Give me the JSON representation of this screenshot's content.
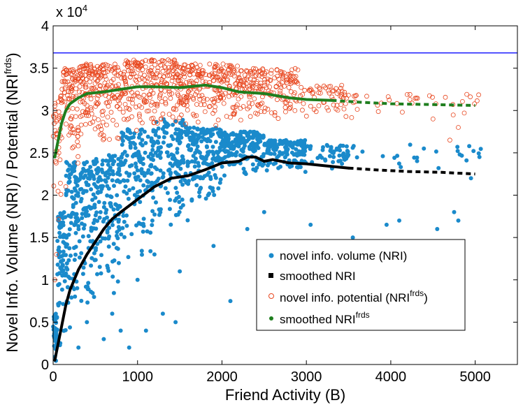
{
  "chart_data": {
    "type": "scatter",
    "title": "",
    "xlabel": "Friend Activity (B)",
    "ylabel_main": "Novel Info. Volume (NRI) / Potential (NRI",
    "ylabel_sup": "frds",
    "ylabel_close": ")",
    "y_exponent_label": "x 10",
    "y_exponent_sup": "4",
    "xlim": [
      0,
      5500
    ],
    "ylim": [
      0,
      4
    ],
    "y_multiplier": 10000,
    "grid": false,
    "legend_position": "lower-right",
    "x_ticks": [
      0,
      1000,
      2000,
      3000,
      4000,
      5000
    ],
    "x_tick_labels": [
      "0",
      "1000",
      "2000",
      "3000",
      "4000",
      "5000"
    ],
    "y_ticks": [
      0,
      0.5,
      1,
      1.5,
      2,
      2.5,
      3,
      3.5,
      4
    ],
    "y_tick_labels": [
      "0",
      "0.5",
      "1",
      "1.5",
      "2",
      "2.5",
      "3",
      "3.5",
      "4"
    ],
    "reference_line": {
      "y": 3.68,
      "color": "#1f1fff"
    },
    "series": [
      {
        "name": "novel info. volume (NRI)",
        "kind": "scatter",
        "marker": "filled-circle",
        "color": "#1a8acb",
        "cloud": [
          {
            "x": [
              0,
              50
            ],
            "y": [
              0.0,
              0.6
            ],
            "n": 40
          },
          {
            "x": [
              50,
              150
            ],
            "y": [
              0.1,
              1.8
            ],
            "n": 70
          },
          {
            "x": [
              150,
              300
            ],
            "y": [
              0.3,
              2.4
            ],
            "n": 90
          },
          {
            "x": [
              300,
              500
            ],
            "y": [
              0.6,
              2.4
            ],
            "n": 100
          },
          {
            "x": [
              500,
              800
            ],
            "y": [
              0.8,
              2.5
            ],
            "n": 140
          },
          {
            "x": [
              800,
              1200
            ],
            "y": [
              1.2,
              2.8
            ],
            "n": 160
          },
          {
            "x": [
              1200,
              1600
            ],
            "y": [
              1.6,
              2.9
            ],
            "n": 150
          },
          {
            "x": [
              1600,
              2000
            ],
            "y": [
              1.9,
              2.8
            ],
            "n": 160
          },
          {
            "x": [
              2000,
              2500
            ],
            "y": [
              2.2,
              2.75
            ],
            "n": 180
          },
          {
            "x": [
              2500,
              3000
            ],
            "y": [
              2.25,
              2.65
            ],
            "n": 120
          },
          {
            "x": [
              3000,
              3500
            ],
            "y": [
              2.3,
              2.6
            ],
            "n": 50
          },
          {
            "x": [
              3500,
              5100
            ],
            "y": [
              2.2,
              2.6
            ],
            "n": 25
          }
        ],
        "outliers": [
          {
            "x": 300,
            "y": 0.2
          },
          {
            "x": 400,
            "y": 0.5
          },
          {
            "x": 600,
            "y": 0.3
          },
          {
            "x": 700,
            "y": 0.6
          },
          {
            "x": 800,
            "y": 0.4
          },
          {
            "x": 900,
            "y": 0.2
          },
          {
            "x": 1100,
            "y": 0.4
          },
          {
            "x": 1300,
            "y": 0.6
          },
          {
            "x": 1450,
            "y": 0.5
          },
          {
            "x": 1000,
            "y": 1.0
          },
          {
            "x": 1200,
            "y": 1.3
          },
          {
            "x": 1500,
            "y": 1.1
          },
          {
            "x": 1900,
            "y": 1.4
          },
          {
            "x": 2100,
            "y": 0.75
          },
          {
            "x": 2300,
            "y": 1.6
          },
          {
            "x": 2500,
            "y": 1.8
          },
          {
            "x": 3050,
            "y": 1.65
          },
          {
            "x": 3550,
            "y": 1.5
          },
          {
            "x": 3950,
            "y": 1.65
          },
          {
            "x": 4100,
            "y": 1.7
          },
          {
            "x": 4550,
            "y": 1.6
          },
          {
            "x": 4750,
            "y": 1.8
          },
          {
            "x": 4800,
            "y": 1.7
          },
          {
            "x": 4950,
            "y": 2.2
          },
          {
            "x": 5050,
            "y": 2.45
          }
        ]
      },
      {
        "name": "smoothed NRI",
        "kind": "line",
        "marker": "square",
        "color": "#000000",
        "x": [
          20,
          50,
          100,
          150,
          200,
          300,
          400,
          500,
          600,
          700,
          800,
          1000,
          1200,
          1400,
          1600,
          1800,
          2000,
          2200,
          2300,
          2400,
          2500,
          2600,
          2700,
          2800,
          3000,
          3200,
          3500,
          3800,
          4200,
          4600,
          5000
        ],
        "y": [
          0.05,
          0.2,
          0.45,
          0.7,
          0.88,
          1.12,
          1.3,
          1.45,
          1.6,
          1.72,
          1.8,
          1.95,
          2.1,
          2.2,
          2.23,
          2.3,
          2.38,
          2.4,
          2.45,
          2.45,
          2.4,
          2.42,
          2.4,
          2.38,
          2.37,
          2.35,
          2.32,
          2.3,
          2.28,
          2.27,
          2.25
        ]
      },
      {
        "name": "novel info. potential (NRI",
        "name_sup": "frds",
        "name_close": ")",
        "kind": "scatter",
        "marker": "open-circle",
        "color": "#e8461e",
        "cloud": [
          {
            "x": [
              0,
              100
            ],
            "y": [
              1.5,
              3.2
            ],
            "n": 40
          },
          {
            "x": [
              100,
              300
            ],
            "y": [
              2.3,
              3.5
            ],
            "n": 90
          },
          {
            "x": [
              300,
              800
            ],
            "y": [
              2.6,
              3.55
            ],
            "n": 200
          },
          {
            "x": [
              800,
              1500
            ],
            "y": [
              2.7,
              3.6
            ],
            "n": 240
          },
          {
            "x": [
              1500,
              2200
            ],
            "y": [
              2.8,
              3.55
            ],
            "n": 230
          },
          {
            "x": [
              2200,
              2900
            ],
            "y": [
              2.85,
              3.5
            ],
            "n": 180
          },
          {
            "x": [
              2900,
              3500
            ],
            "y": [
              2.9,
              3.3
            ],
            "n": 60
          },
          {
            "x": [
              3500,
              5100
            ],
            "y": [
              2.9,
              3.2
            ],
            "n": 35
          }
        ],
        "outliers": [
          {
            "x": 20,
            "y": 1.0
          },
          {
            "x": 40,
            "y": 1.3
          },
          {
            "x": 150,
            "y": 2.1
          },
          {
            "x": 4700,
            "y": 2.65
          },
          {
            "x": 4800,
            "y": 2.8
          },
          {
            "x": 4500,
            "y": 2.9
          }
        ]
      },
      {
        "name": "smoothed NRI",
        "name_sup": "frds",
        "kind": "line",
        "marker": "dot",
        "color": "#1e7e1e",
        "x": [
          20,
          50,
          100,
          150,
          200,
          300,
          400,
          600,
          800,
          1000,
          1200,
          1500,
          1800,
          2000,
          2200,
          2500,
          2800,
          3000,
          3300,
          3600,
          4000,
          4500,
          5000
        ],
        "y": [
          2.45,
          2.6,
          2.85,
          3.0,
          3.08,
          3.15,
          3.2,
          3.22,
          3.25,
          3.28,
          3.28,
          3.27,
          3.3,
          3.27,
          3.22,
          3.2,
          3.15,
          3.13,
          3.12,
          3.1,
          3.08,
          3.07,
          3.06
        ]
      }
    ]
  }
}
